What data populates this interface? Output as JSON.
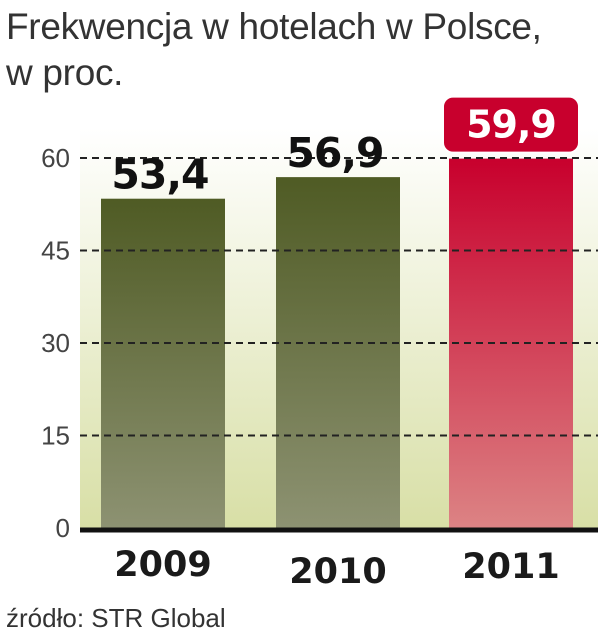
{
  "chart_data": {
    "type": "bar",
    "title_lines": [
      "Frekwencja w hotelach w Polsce,",
      "w proc."
    ],
    "categories": [
      "2009",
      "2010",
      "2011"
    ],
    "values": [
      53.4,
      56.9,
      59.9
    ],
    "value_labels": [
      "53,4",
      "56,9",
      "59,9"
    ],
    "highlight_index": 2,
    "yticks": [
      "0",
      "15",
      "30",
      "45",
      "60"
    ],
    "ylim": [
      0,
      60
    ],
    "grid": "dashed",
    "source": "źródło: STR Global",
    "colors": {
      "bar_top": "#4f5b24",
      "bar_bottom": "#8d9272",
      "highlight_top": "#c8002d",
      "highlight_bottom": "#dc8384",
      "highlight_label_bg": "#c8002d",
      "bg_top": "#ffffff",
      "bg_bottom": "#d8dfa6",
      "axis": "#111111"
    }
  }
}
